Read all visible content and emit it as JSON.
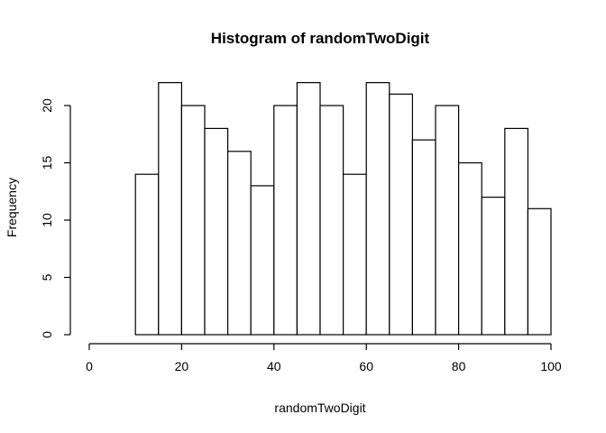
{
  "chart_data": {
    "type": "bar",
    "title": "Histogram of randomTwoDigit",
    "xlabel": "randomTwoDigit",
    "ylabel": "Frequency",
    "bin_edges": [
      10,
      15,
      20,
      25,
      30,
      35,
      40,
      45,
      50,
      55,
      60,
      65,
      70,
      75,
      80,
      85,
      90,
      95,
      100
    ],
    "values": [
      14,
      22,
      20,
      18,
      16,
      13,
      20,
      22,
      20,
      14,
      22,
      21,
      17,
      20,
      15,
      12,
      18,
      11
    ],
    "xlim": [
      0,
      100
    ],
    "ylim": [
      0,
      22
    ],
    "x_ticks": [
      0,
      20,
      40,
      60,
      80,
      100
    ],
    "y_ticks": [
      0,
      5,
      10,
      15,
      20
    ],
    "bar_fill": "#ffffff",
    "bar_stroke": "#000000",
    "grid": false,
    "legend": "none"
  }
}
